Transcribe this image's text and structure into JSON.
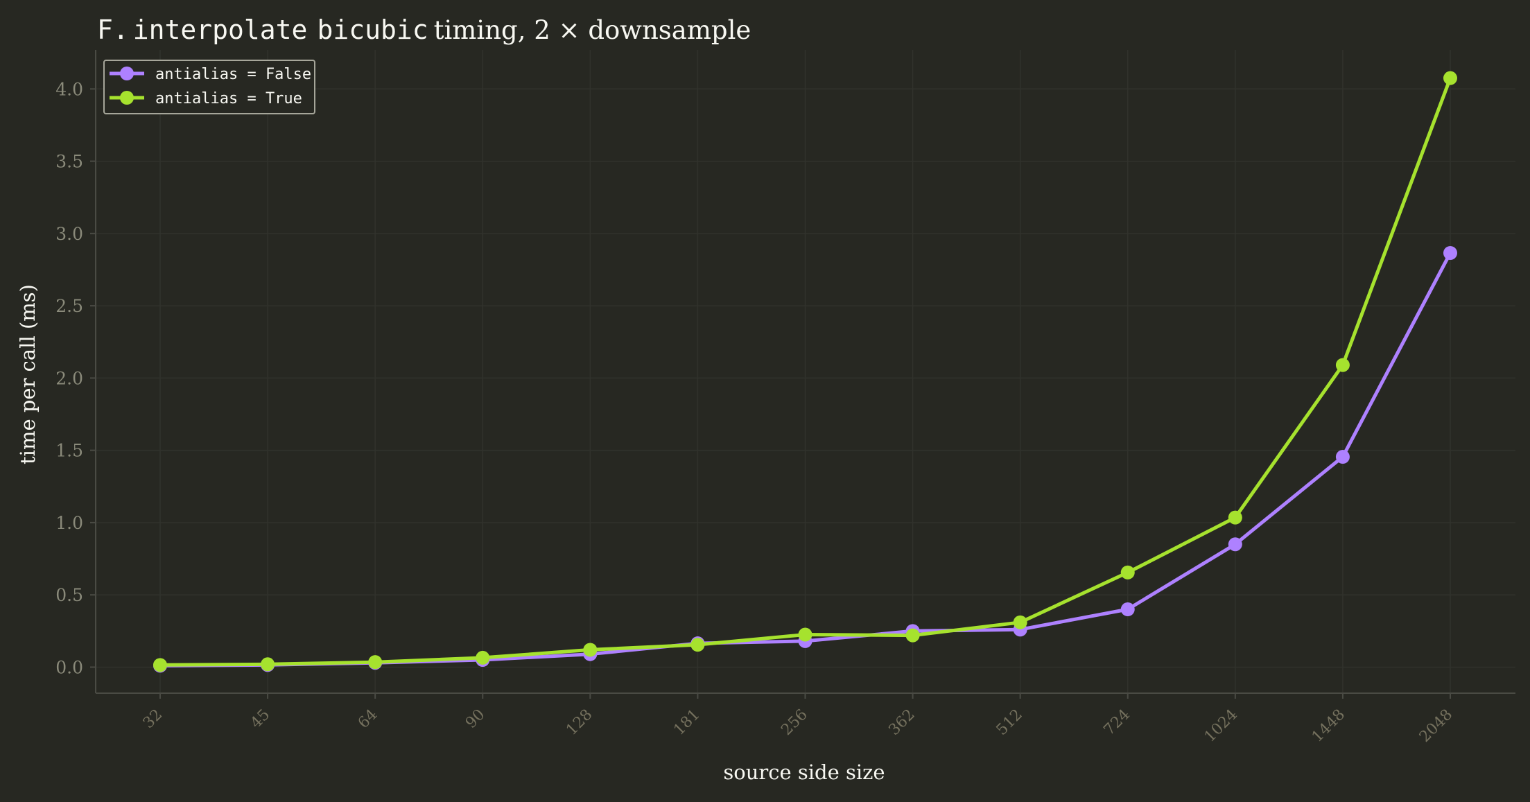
{
  "chart_data": {
    "type": "line",
    "title": {
      "parts": [
        "F.",
        "interpolate",
        "bicubic",
        "timing, 2 ×  downsample"
      ]
    },
    "xlabel": "source side size",
    "ylabel": "time per call (ms)",
    "categories": [
      "32",
      "45",
      "64",
      "90",
      "128",
      "181",
      "256",
      "362",
      "512",
      "724",
      "1024",
      "1448",
      "2048"
    ],
    "ylim": [
      -0.18,
      4.27
    ],
    "yticks": [
      0.0,
      0.5,
      1.0,
      1.5,
      2.0,
      2.5,
      3.0,
      3.5,
      4.0
    ],
    "ytick_labels": [
      "0.0",
      "0.5",
      "1.0",
      "1.5",
      "2.0",
      "2.5",
      "3.0",
      "3.5",
      "4.0"
    ],
    "grid": true,
    "legend_position": "top-left",
    "series": [
      {
        "name": "antialias = False",
        "color": "#ae81ff",
        "values": [
          0.01,
          0.015,
          0.03,
          0.05,
          0.09,
          0.165,
          0.18,
          0.25,
          0.26,
          0.4,
          0.85,
          1.455,
          2.865
        ]
      },
      {
        "name": "antialias = True",
        "color": "#a6e22e",
        "values": [
          0.015,
          0.02,
          0.035,
          0.065,
          0.12,
          0.155,
          0.225,
          0.22,
          0.31,
          0.655,
          1.035,
          2.09,
          4.075
        ]
      }
    ],
    "colors": {
      "background": "#272822",
      "grid": "#31322c",
      "axis": "#4a4b44",
      "text": "#f8f8f2",
      "tick_text": "#75715e",
      "legend_border": "#a6a69a"
    }
  }
}
